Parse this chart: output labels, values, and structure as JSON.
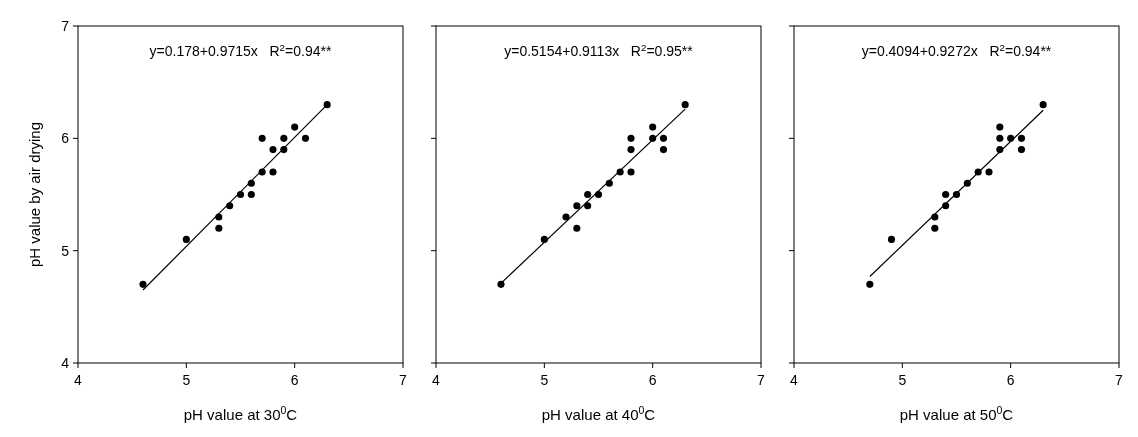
{
  "chart_data": [
    {
      "type": "scatter",
      "xlabel": "pH value at 30$^{0}$C",
      "ylabel": "pH value by air drying",
      "xlim": [
        4,
        7
      ],
      "ylim": [
        4,
        7
      ],
      "xticks": [
        4,
        5,
        6,
        7
      ],
      "yticks": [
        4,
        5,
        6,
        7
      ],
      "marker": "circle",
      "annotations": [
        "y=0.178+0.9715x   R$^{2}$=0.94**"
      ],
      "series": [
        {
          "color": "#000000",
          "x": [
            4.6,
            5.0,
            5.3,
            5.3,
            5.4,
            5.5,
            5.6,
            5.6,
            5.7,
            5.7,
            5.8,
            5.8,
            5.9,
            5.9,
            6.0,
            6.1,
            6.3
          ],
          "values": [
            4.7,
            5.1,
            5.3,
            5.2,
            5.4,
            5.5,
            5.6,
            5.5,
            5.7,
            6.0,
            5.9,
            5.7,
            6.0,
            5.9,
            6.1,
            6.0,
            6.3
          ]
        },
        {
          "type": "line",
          "color": "#000000",
          "marker": "none",
          "x": [
            4.6,
            6.3
          ],
          "values": [
            4.65,
            6.3
          ]
        }
      ]
    },
    {
      "type": "scatter",
      "xlabel": "pH value at 40$^{0}$C",
      "xlim": [
        4,
        7
      ],
      "ylim": [
        4,
        7
      ],
      "xticks": [
        4,
        5,
        6,
        7
      ],
      "yticks": [
        4,
        5,
        6,
        7
      ],
      "tick_labels": "x",
      "marker": "circle",
      "annotations": [
        "y=0.5154+0.9113x   R$^{2}$=0.95**"
      ],
      "series": [
        {
          "color": "#000000",
          "x": [
            4.6,
            5.0,
            5.2,
            5.3,
            5.3,
            5.4,
            5.4,
            5.5,
            5.6,
            5.7,
            5.8,
            5.8,
            5.8,
            6.0,
            6.0,
            6.1,
            6.1,
            6.3
          ],
          "values": [
            4.7,
            5.1,
            5.3,
            5.4,
            5.2,
            5.5,
            5.4,
            5.5,
            5.6,
            5.7,
            6.0,
            5.9,
            5.7,
            6.1,
            6.0,
            6.0,
            5.9,
            6.3
          ]
        },
        {
          "type": "line",
          "color": "#000000",
          "marker": "none",
          "x": [
            4.6,
            6.3
          ],
          "values": [
            4.71,
            6.26
          ]
        }
      ]
    },
    {
      "type": "scatter",
      "xlabel": "pH value at 50$^{0}$C",
      "xlim": [
        4,
        7
      ],
      "ylim": [
        4,
        7
      ],
      "xticks": [
        4,
        5,
        6,
        7
      ],
      "yticks": [
        4,
        5,
        6,
        7
      ],
      "tick_labels": "x",
      "marker": "circle",
      "annotations": [
        "y=0.4094+0.9272x   R$^{2}$=0.94**"
      ],
      "series": [
        {
          "color": "#000000",
          "x": [
            4.7,
            4.9,
            5.3,
            5.3,
            5.4,
            5.4,
            5.5,
            5.6,
            5.7,
            5.8,
            5.9,
            5.9,
            5.9,
            6.0,
            6.1,
            6.1,
            6.3
          ],
          "values": [
            4.7,
            5.1,
            5.3,
            5.2,
            5.5,
            5.4,
            5.5,
            5.6,
            5.7,
            5.7,
            6.1,
            6.0,
            5.9,
            6.0,
            6.0,
            5.9,
            6.3
          ]
        },
        {
          "type": "line",
          "color": "#000000",
          "marker": "none",
          "x": [
            4.7,
            6.3
          ],
          "values": [
            4.77,
            6.25
          ]
        }
      ]
    }
  ]
}
